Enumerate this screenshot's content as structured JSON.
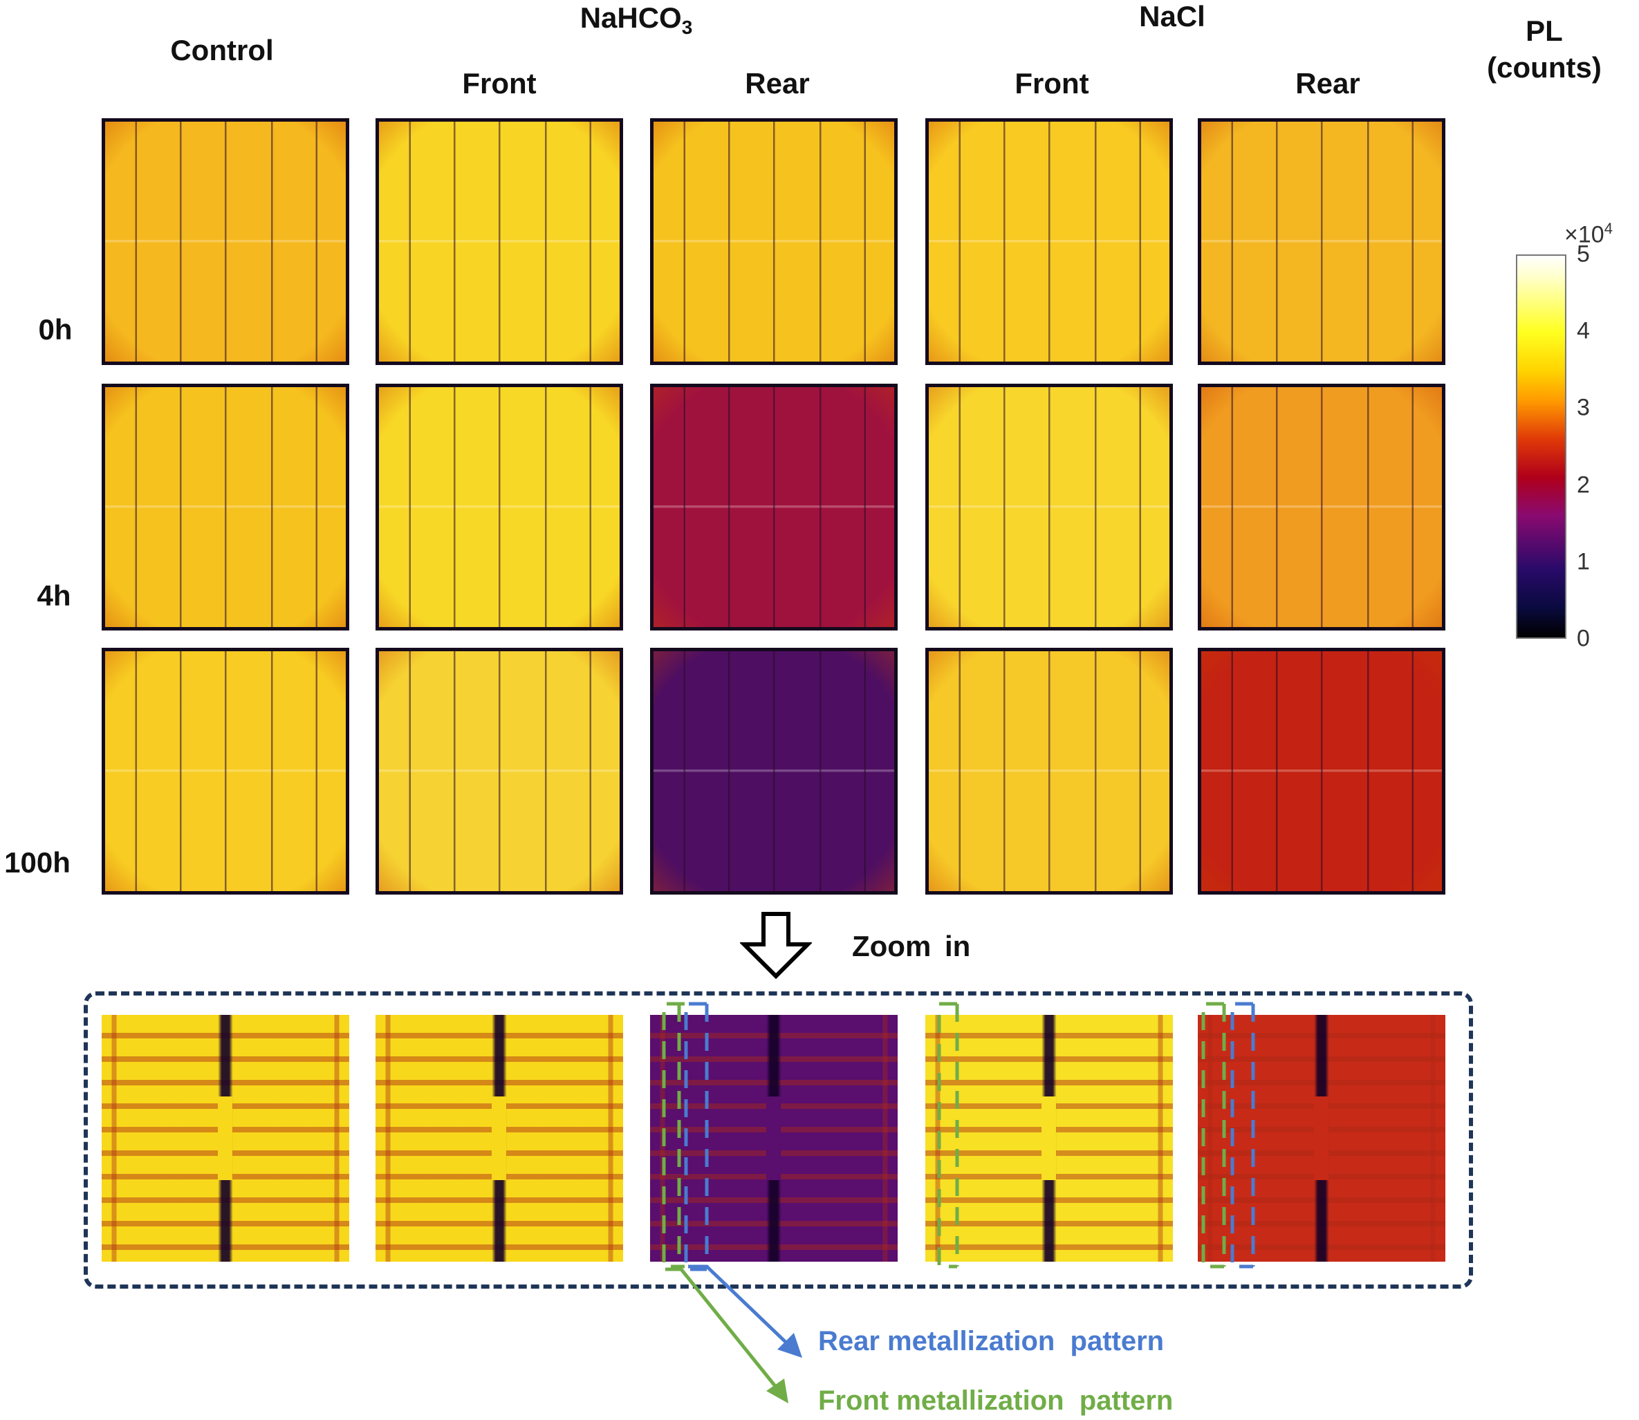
{
  "headers": {
    "control": "Control",
    "nahco3_main": "NaHCO",
    "nahco3_sub": "3",
    "nacl": "NaCl",
    "front1": "Front",
    "rear1": "Rear",
    "front2": "Front",
    "rear2": "Rear"
  },
  "row_labels": [
    "0h",
    "4h",
    "100h"
  ],
  "colorbar": {
    "title_line1": "PL",
    "title_line2": "(counts)",
    "multiplier_base": "×10",
    "multiplier_exp": "4",
    "ticks": [
      "0",
      "1",
      "2",
      "3",
      "4",
      "5"
    ],
    "range": [
      0,
      5
    ],
    "colormap": "hot/inferno-like (black-purple-red-orange-yellow-white)"
  },
  "zoom_label": "Zoom in",
  "legend": {
    "rear": "Rear metallization  pattern",
    "front": "Front metallization  pattern",
    "rear_color": "#4A7BD0",
    "front_color": "#70AD47"
  },
  "cells": [
    [
      "#F5B81E",
      "#F8D424",
      "#F6C21E",
      "#F8CA22",
      "#F4B722"
    ],
    [
      "#F6C21E",
      "#F8D826",
      "#A0123E",
      "#F8D62C",
      "#F09C20"
    ],
    [
      "#F8CC22",
      "#F6D232",
      "#4E0E62",
      "#F6C828",
      "#C42212"
    ]
  ],
  "zoom_tiles": [
    "#F8D81A",
    "#F8D81A",
    "#5A0E6E",
    "#F8E024",
    "#C82A18"
  ],
  "box_color": "#1F3558"
}
